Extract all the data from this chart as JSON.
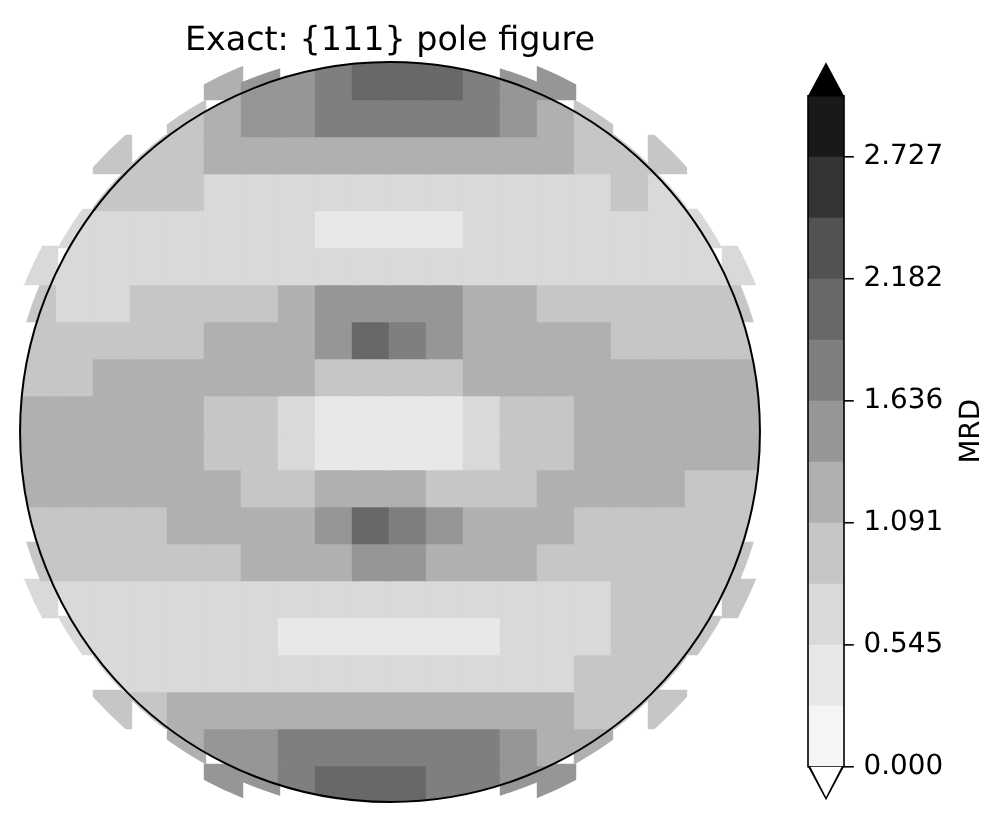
{
  "chart_data": {
    "type": "heatmap",
    "title": "Exact: {111} pole figure",
    "clabel": "MRD",
    "categories": [
      null,
      null,
      null,
      null,
      null,
      null,
      null,
      null,
      null,
      null,
      null,
      null,
      null,
      null,
      null,
      null,
      null,
      null,
      null,
      null
    ],
    "y_categories": [
      null,
      null,
      null,
      null,
      null,
      null,
      null,
      null,
      null,
      null,
      null,
      null,
      null,
      null,
      null,
      null,
      null,
      null,
      null,
      null
    ],
    "cells": [
      [
        null,
        null,
        null,
        null,
        null,
        1.2,
        1.5,
        1.5,
        1.8,
        2.0,
        2.0,
        2.0,
        1.8,
        1.5,
        1.5,
        null,
        null,
        null,
        null,
        null
      ],
      [
        null,
        null,
        null,
        null,
        1.0,
        1.2,
        1.5,
        1.5,
        1.8,
        1.8,
        1.8,
        1.8,
        1.8,
        1.5,
        1.2,
        1.0,
        null,
        null,
        null,
        null
      ],
      [
        null,
        null,
        1.0,
        1.0,
        1.0,
        1.2,
        1.2,
        1.2,
        1.2,
        1.2,
        1.2,
        1.2,
        1.2,
        1.2,
        1.2,
        1.0,
        1.0,
        1.0,
        null,
        null
      ],
      [
        null,
        null,
        1.0,
        1.0,
        1.0,
        0.7,
        0.7,
        0.7,
        0.7,
        0.7,
        0.7,
        0.7,
        0.7,
        0.7,
        0.7,
        0.7,
        1.0,
        0.7,
        null,
        null
      ],
      [
        null,
        0.7,
        0.7,
        0.7,
        0.7,
        0.7,
        0.7,
        0.7,
        0.4,
        0.4,
        0.4,
        0.4,
        0.7,
        0.7,
        0.7,
        0.7,
        0.7,
        0.7,
        0.7,
        null
      ],
      [
        0.7,
        0.7,
        0.7,
        0.7,
        0.7,
        0.7,
        0.7,
        0.7,
        0.7,
        0.7,
        0.7,
        0.7,
        0.7,
        0.7,
        0.7,
        0.7,
        0.7,
        0.7,
        0.7,
        0.7
      ],
      [
        1.0,
        0.7,
        0.7,
        1.0,
        1.0,
        1.0,
        1.0,
        1.2,
        1.5,
        1.5,
        1.5,
        1.5,
        1.2,
        1.2,
        1.0,
        1.0,
        1.0,
        1.0,
        1.0,
        1.0
      ],
      [
        1.0,
        1.0,
        1.0,
        1.0,
        1.0,
        1.2,
        1.2,
        1.2,
        1.5,
        2.0,
        1.8,
        1.5,
        1.2,
        1.2,
        1.2,
        1.2,
        1.0,
        1.0,
        1.0,
        1.0
      ],
      [
        1.0,
        1.0,
        1.2,
        1.2,
        1.2,
        1.2,
        1.2,
        1.2,
        1.0,
        1.0,
        1.0,
        1.0,
        1.2,
        1.2,
        1.2,
        1.2,
        1.2,
        1.2,
        1.2,
        1.2
      ],
      [
        1.2,
        1.2,
        1.2,
        1.2,
        1.2,
        1.0,
        1.0,
        0.7,
        0.4,
        0.4,
        0.4,
        0.4,
        0.7,
        1.0,
        1.0,
        1.2,
        1.2,
        1.2,
        1.2,
        1.2
      ],
      [
        1.2,
        1.2,
        1.2,
        1.2,
        1.2,
        1.0,
        1.0,
        0.7,
        0.4,
        0.4,
        0.4,
        0.4,
        0.7,
        1.0,
        1.0,
        1.2,
        1.2,
        1.2,
        1.2,
        1.2
      ],
      [
        1.2,
        1.2,
        1.2,
        1.2,
        1.2,
        1.2,
        1.0,
        1.0,
        1.2,
        1.2,
        1.2,
        1.0,
        1.0,
        1.0,
        1.2,
        1.2,
        1.2,
        1.2,
        1.0,
        1.0
      ],
      [
        1.0,
        1.0,
        1.0,
        1.0,
        1.2,
        1.2,
        1.2,
        1.2,
        1.5,
        2.0,
        1.8,
        1.5,
        1.2,
        1.2,
        1.2,
        1.0,
        1.0,
        1.0,
        1.0,
        1.0
      ],
      [
        1.0,
        1.0,
        1.0,
        1.0,
        1.0,
        1.0,
        1.2,
        1.2,
        1.2,
        1.5,
        1.5,
        1.2,
        1.2,
        1.2,
        1.0,
        1.0,
        1.0,
        1.0,
        1.0,
        1.0
      ],
      [
        0.7,
        0.7,
        0.7,
        0.7,
        0.7,
        0.7,
        0.7,
        0.7,
        0.7,
        0.7,
        0.7,
        0.7,
        0.7,
        0.7,
        0.7,
        0.7,
        1.0,
        1.0,
        1.0,
        1.0
      ],
      [
        null,
        0.7,
        0.7,
        0.7,
        0.7,
        0.7,
        0.7,
        0.4,
        0.4,
        0.4,
        0.4,
        0.4,
        0.4,
        0.7,
        0.7,
        0.7,
        1.0,
        1.0,
        1.0,
        null
      ],
      [
        null,
        null,
        0.7,
        0.7,
        0.7,
        0.7,
        0.7,
        0.7,
        0.7,
        0.7,
        0.7,
        0.7,
        0.7,
        0.7,
        0.7,
        1.0,
        1.0,
        1.0,
        null,
        null
      ],
      [
        null,
        null,
        1.0,
        1.0,
        1.2,
        1.2,
        1.2,
        1.2,
        1.2,
        1.2,
        1.2,
        1.2,
        1.2,
        1.2,
        1.2,
        1.0,
        1.0,
        1.0,
        null,
        null
      ],
      [
        null,
        null,
        null,
        null,
        1.2,
        1.5,
        1.5,
        1.8,
        1.8,
        1.8,
        1.8,
        1.8,
        1.8,
        1.5,
        1.2,
        1.2,
        null,
        null,
        null,
        null
      ],
      [
        null,
        null,
        null,
        null,
        null,
        1.5,
        1.5,
        1.8,
        2.0,
        2.0,
        2.0,
        1.8,
        1.8,
        1.5,
        1.5,
        null,
        null,
        null,
        null,
        null
      ]
    ],
    "clim": [
      0,
      3.0
    ],
    "cticks": [
      {
        "value": 0,
        "label": "0.000"
      },
      0.545,
      1.091,
      1.636,
      2.182,
      2.727
    ],
    "tick_labels": false
  }
}
